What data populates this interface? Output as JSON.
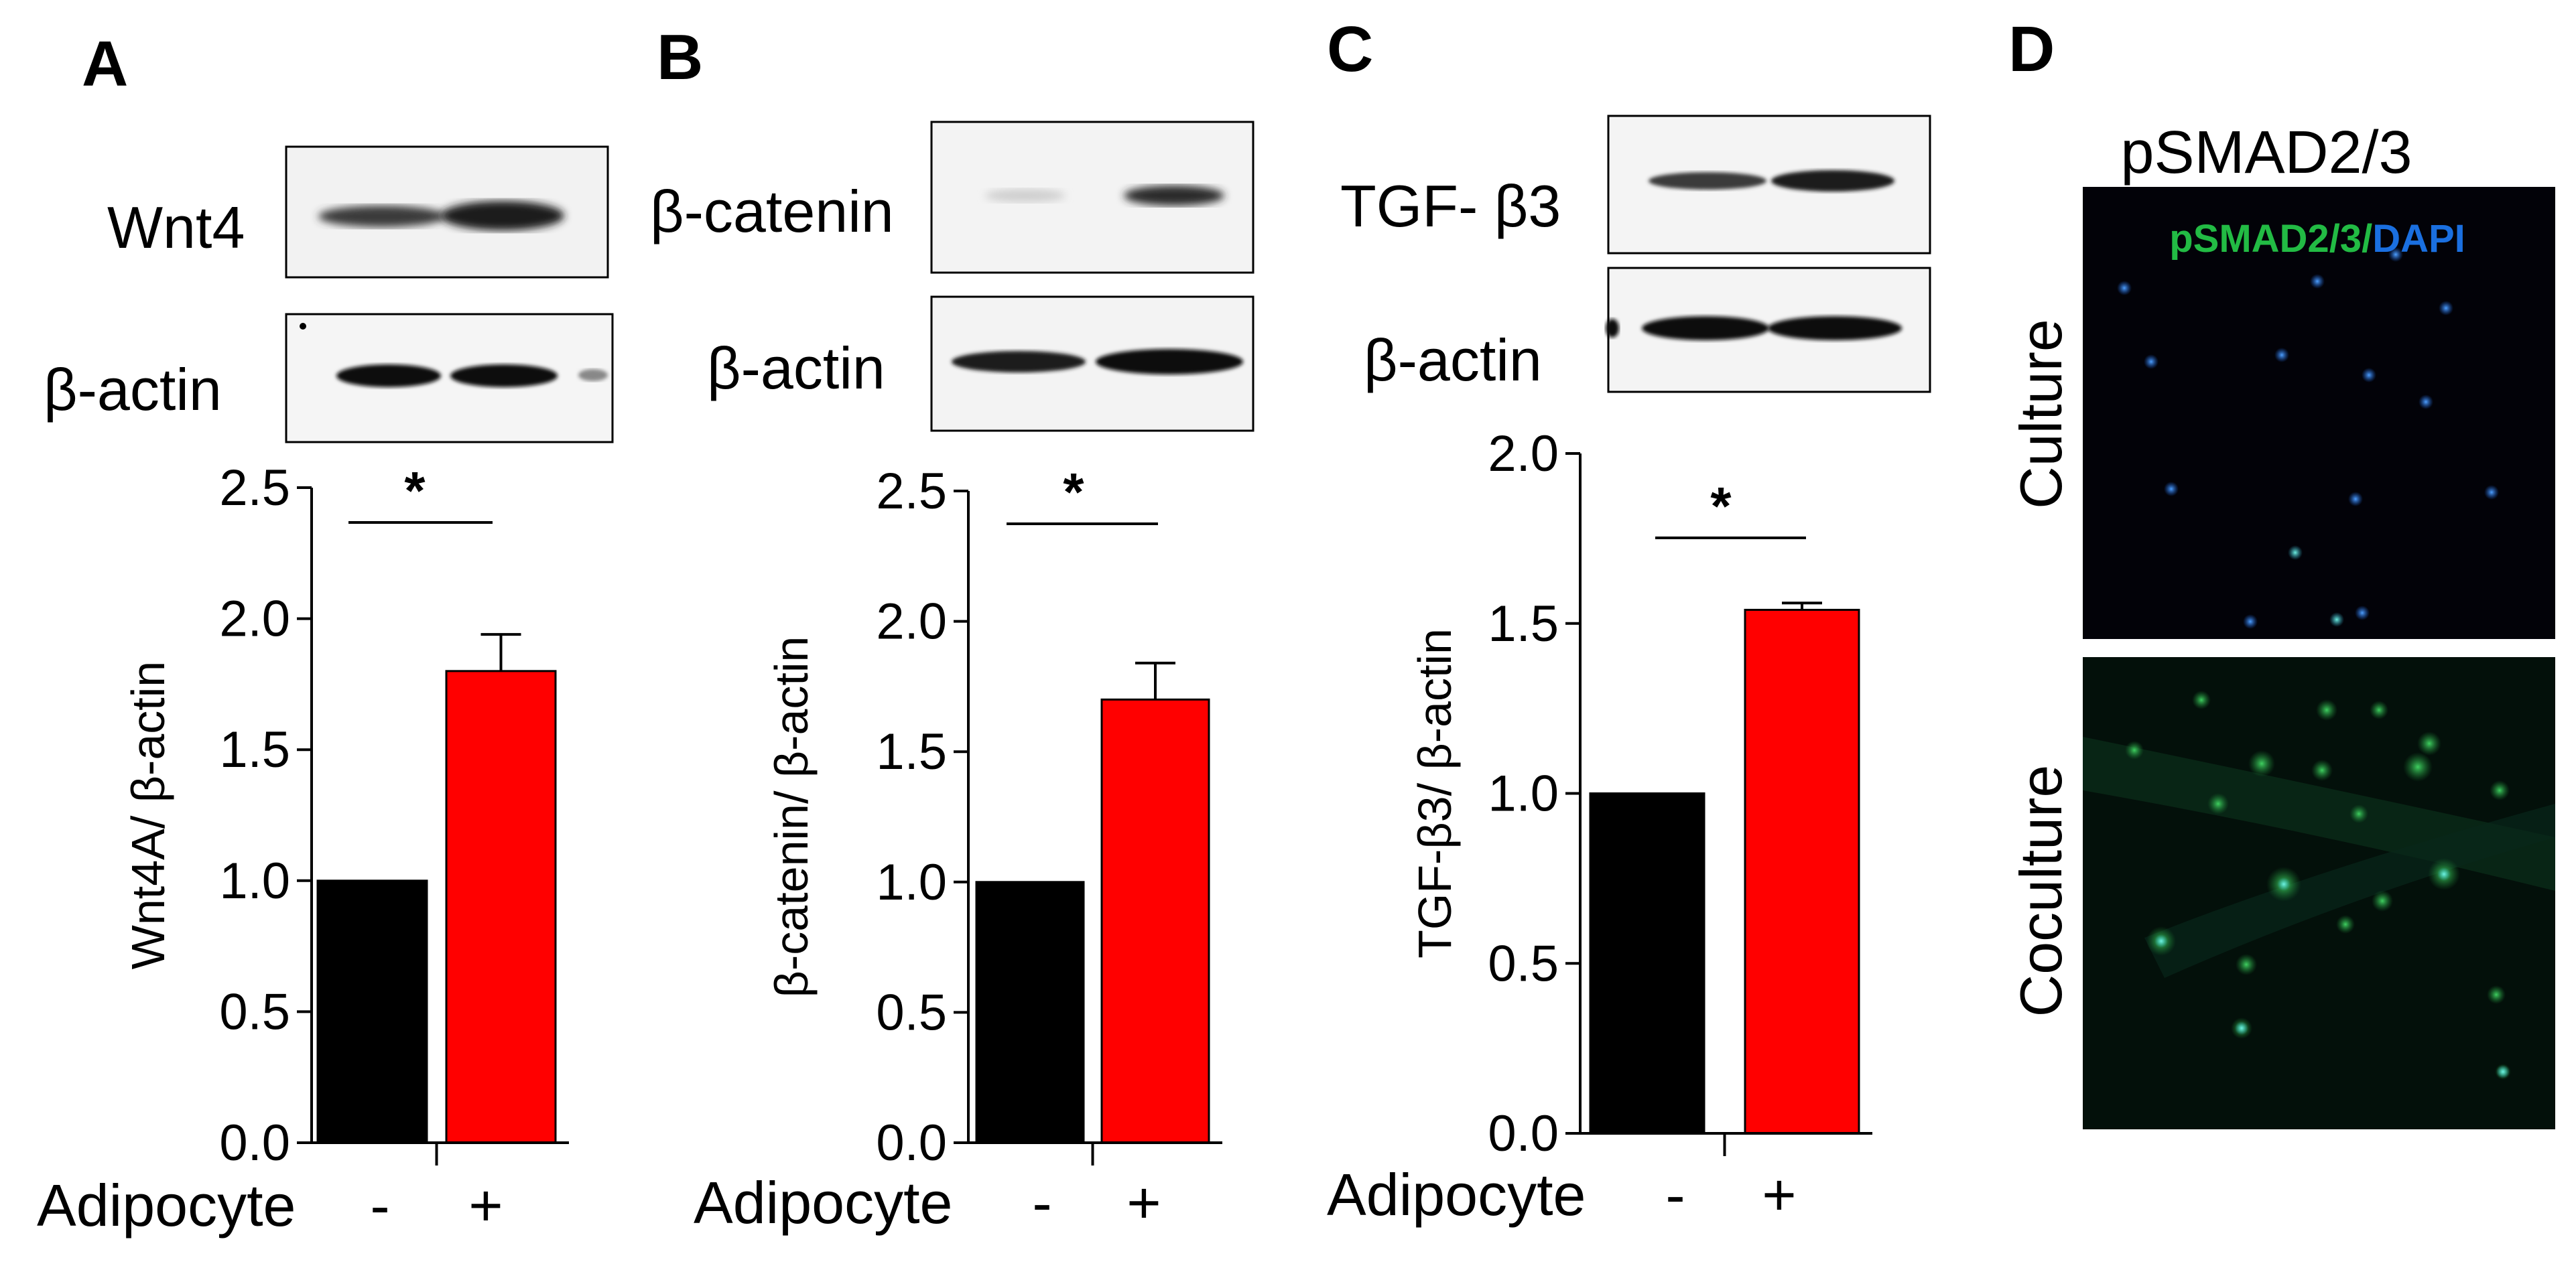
{
  "colors": {
    "control": "#000000",
    "adipocyte": "#ff0000",
    "band": "#1a1a1a",
    "pSMAD": "#22bb44",
    "DAPI": "#1a6fe0"
  },
  "panels": [
    {
      "letter": "A",
      "blot_labels": [
        "Wnt4",
        "β-actin"
      ]
    },
    {
      "letter": "B",
      "blot_labels": [
        "β-catenin",
        "β-actin"
      ]
    },
    {
      "letter": "C",
      "blot_labels": [
        "TGF- β3",
        "β-actin"
      ]
    },
    {
      "letter": "D",
      "title": "pSMAD2/3",
      "overlay_green": "pSMAD2/3",
      "overlay_sep": "/",
      "overlay_blue": "DAPI",
      "row_labels": [
        "Culture",
        "Coculture"
      ]
    }
  ],
  "chart_data": [
    {
      "type": "bar",
      "categories": [
        "-",
        "+"
      ],
      "xlabel": "Adipocyte",
      "ylabel": "Wnt4A/ β-actin",
      "values": [
        1.0,
        1.8
      ],
      "errors": [
        0,
        0.14
      ],
      "ylim": [
        0,
        2.5
      ],
      "yticks": [
        "0.0",
        "0.5",
        "1.0",
        "1.5",
        "2.0",
        "2.5"
      ],
      "significance": "*"
    },
    {
      "type": "bar",
      "categories": [
        "-",
        "+"
      ],
      "xlabel": "Adipocyte",
      "ylabel": "β-catenin/ β-actin",
      "values": [
        1.0,
        1.7
      ],
      "errors": [
        0,
        0.14
      ],
      "ylim": [
        0,
        2.5
      ],
      "yticks": [
        "0.0",
        "0.5",
        "1.0",
        "1.5",
        "2.0",
        "2.5"
      ],
      "significance": "*"
    },
    {
      "type": "bar",
      "categories": [
        "-",
        "+"
      ],
      "xlabel": "Adipocyte",
      "ylabel": "TGF-β3/ β-actin",
      "values": [
        1.0,
        1.54
      ],
      "errors": [
        0,
        0.02
      ],
      "ylim": [
        0,
        2.0
      ],
      "yticks": [
        "0.0",
        "0.5",
        "1.0",
        "1.5",
        "2.0"
      ],
      "significance": "*"
    }
  ]
}
